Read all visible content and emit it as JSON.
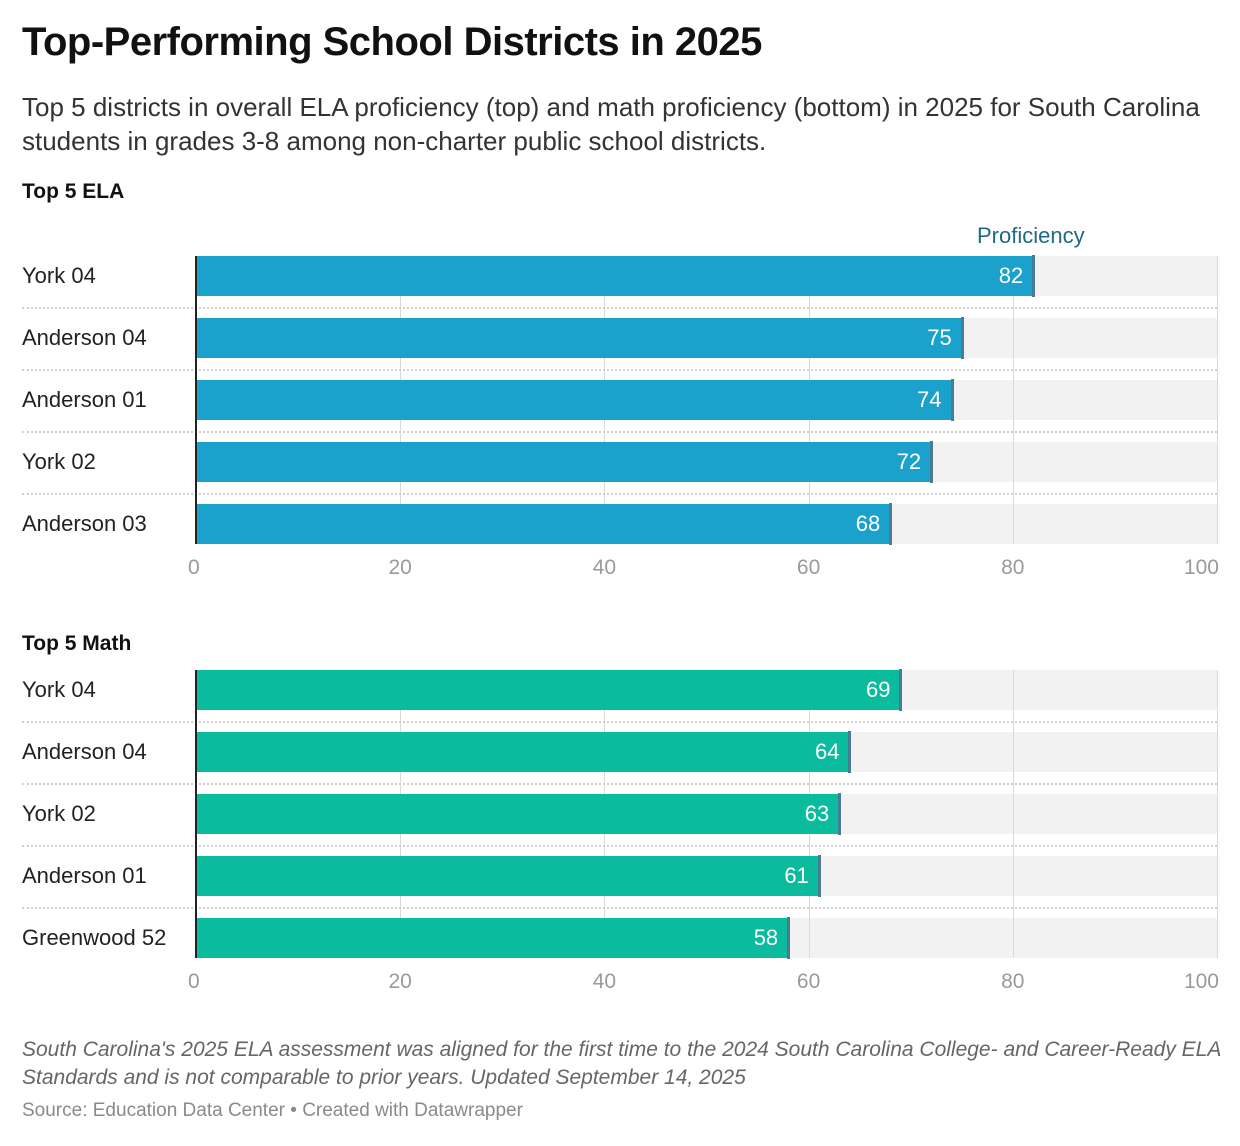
{
  "title": "Top-Performing School Districts in 2025",
  "subtitle": "Top 5 districts in overall ELA proficiency (top) and math proficiency (bottom) in 2025 for South Carolina students in grades 3-8 among non-charter public school districts.",
  "note": "South Carolina's 2025 ELA assessment was aligned for the first time to the 2024 South Carolina College- and Career-Ready ELA Standards and is not comparable to prior years. Updated September 14, 2025",
  "source": "Source: Education Data Center • Created with Datawrapper",
  "chart_data": [
    {
      "type": "bar",
      "title": "Top 5 ELA",
      "series_label": "Proficiency",
      "color": "#1aa1cc",
      "categories": [
        "York 04",
        "Anderson 04",
        "Anderson 01",
        "York 02",
        "Anderson 03"
      ],
      "values": [
        82,
        75,
        74,
        72,
        68
      ],
      "xlim": [
        0,
        100
      ],
      "ticks": [
        "0",
        "20",
        "40",
        "60",
        "80",
        "100"
      ]
    },
    {
      "type": "bar",
      "title": "Top 5 Math",
      "color": "#0bbb9d",
      "categories": [
        "York 04",
        "Anderson 04",
        "York 02",
        "Anderson 01",
        "Greenwood 52"
      ],
      "values": [
        69,
        64,
        63,
        61,
        58
      ],
      "xlim": [
        0,
        100
      ],
      "ticks": [
        "0",
        "20",
        "40",
        "60",
        "80",
        "100"
      ]
    }
  ]
}
